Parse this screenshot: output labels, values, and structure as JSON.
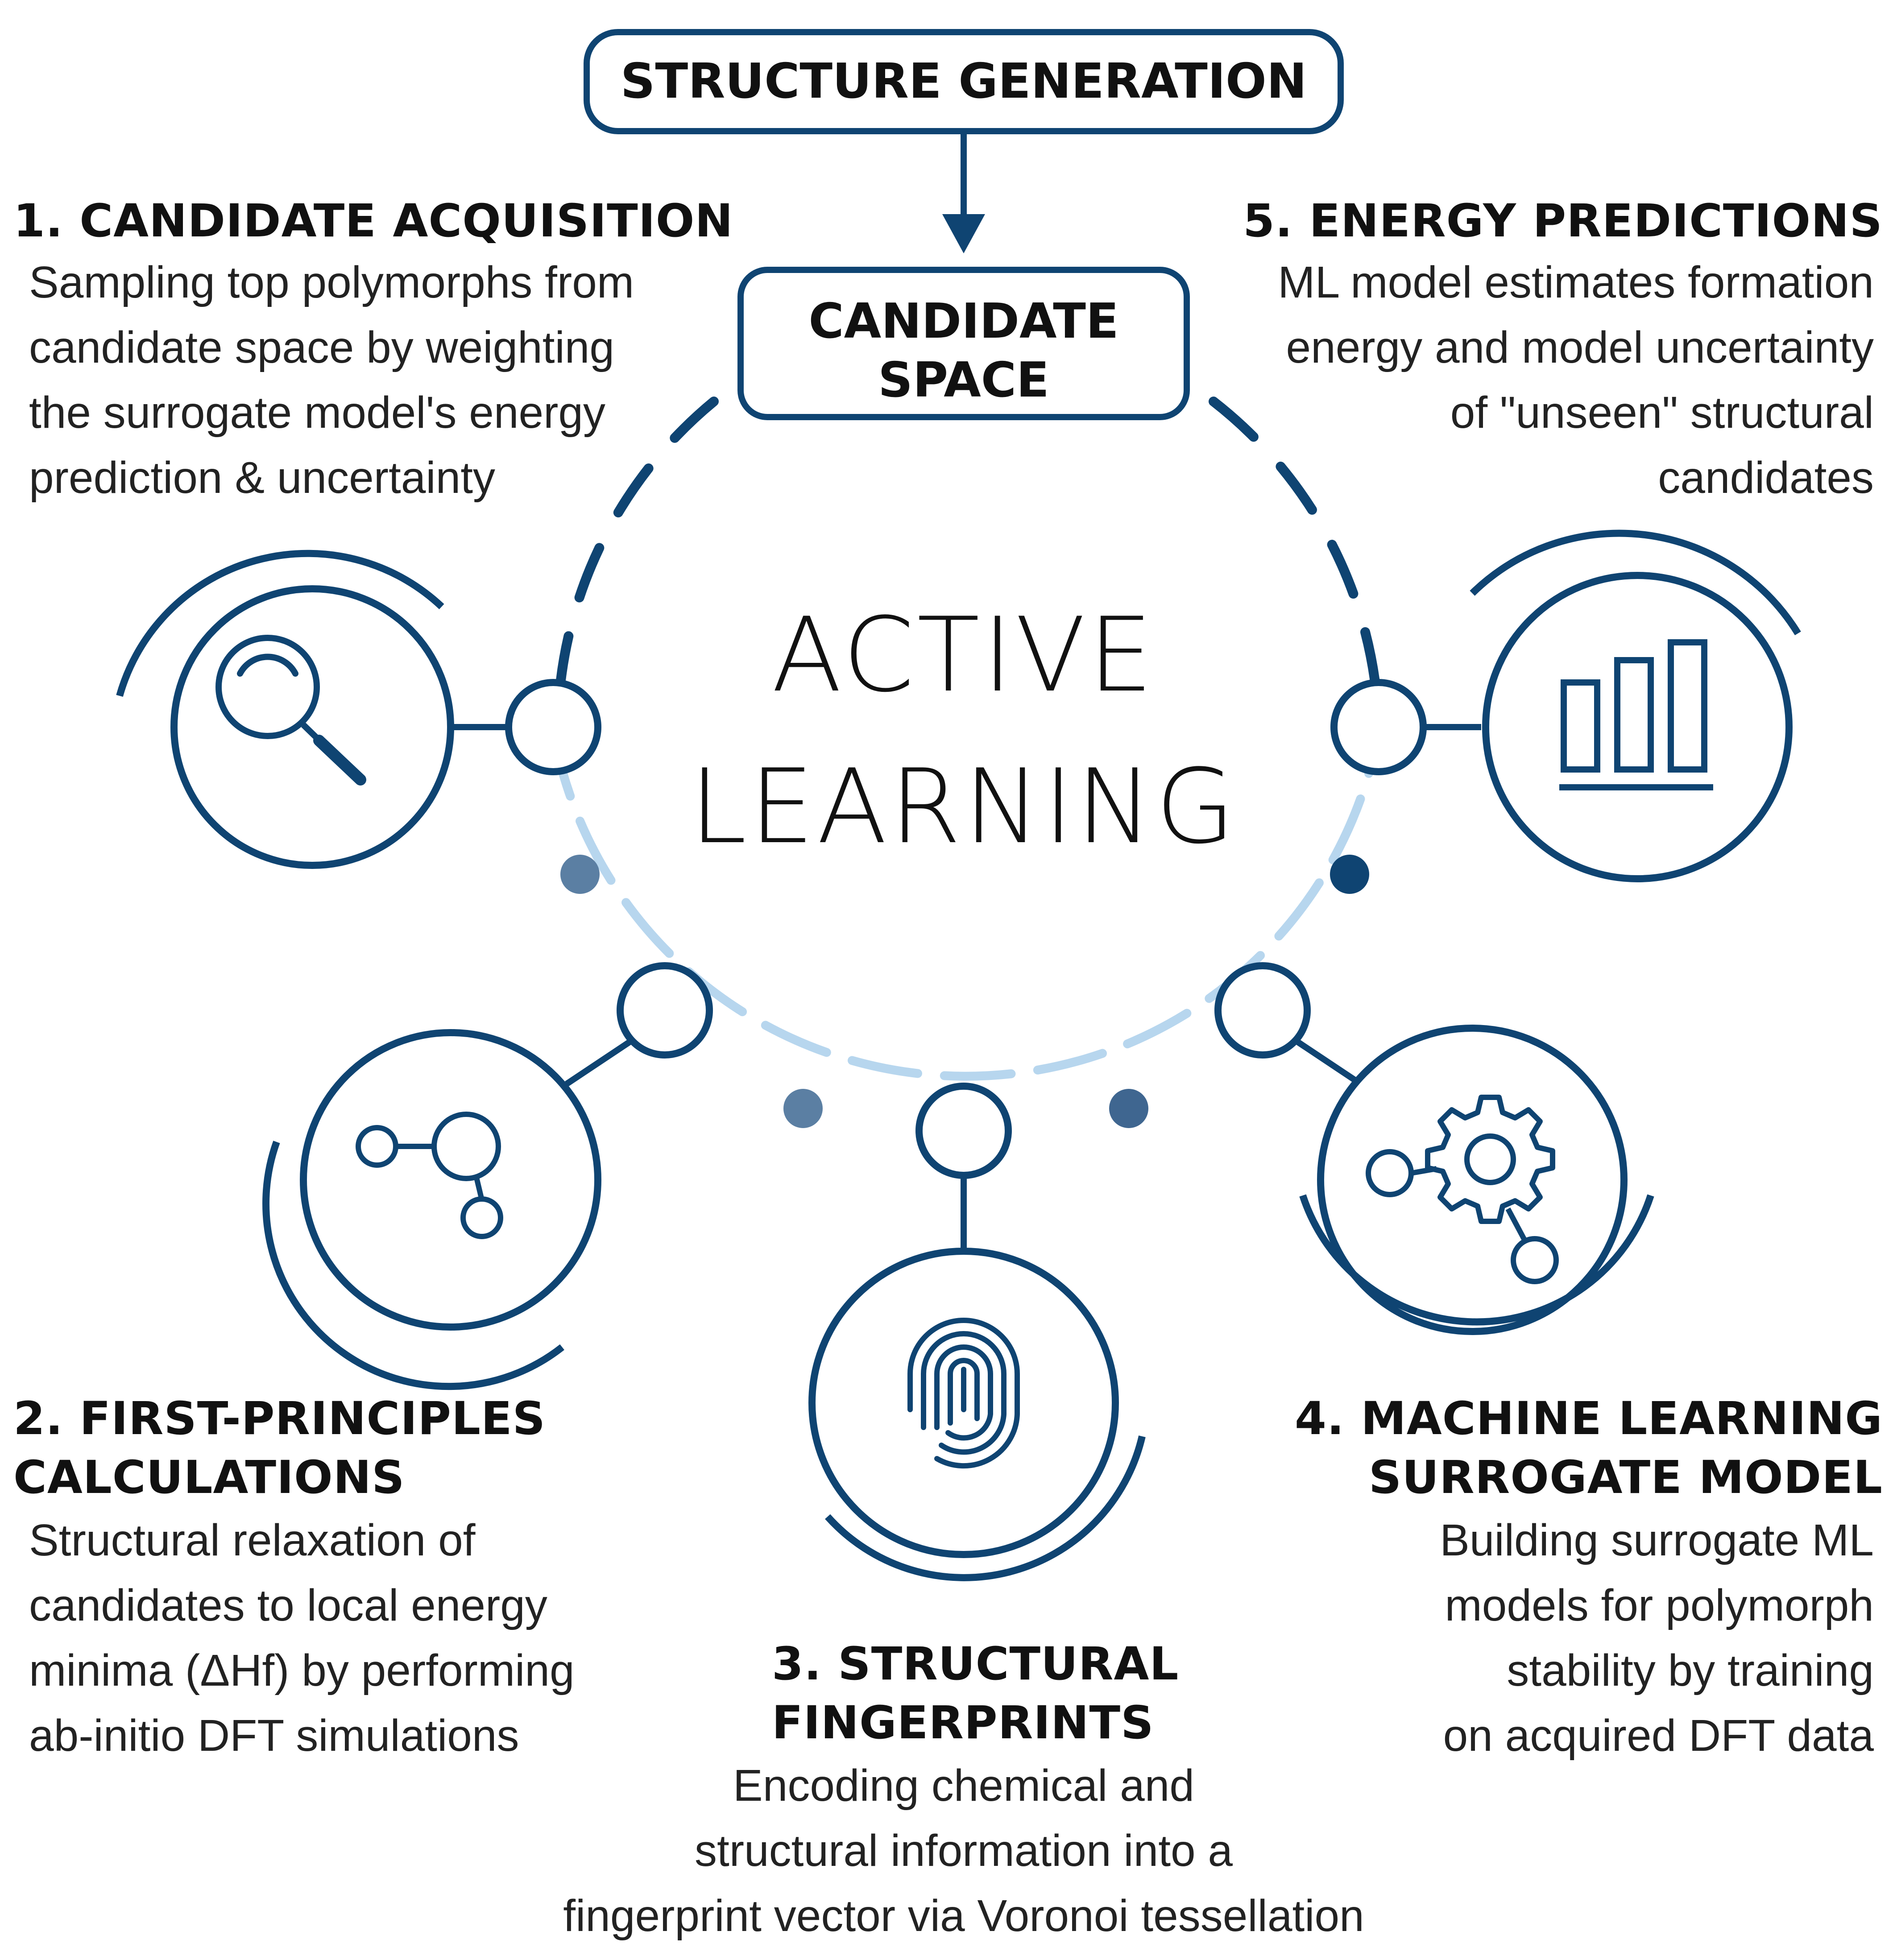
{
  "top_box": {
    "label": "STRUCTURE GENERATION"
  },
  "candidate_box": {
    "line1": "CANDIDATE",
    "line2": "SPACE"
  },
  "center_title": {
    "line1": "ACTIVE",
    "line2": "LEARNING"
  },
  "steps": [
    {
      "heading": [
        "1. CANDIDATE ACQUISITION"
      ],
      "description": [
        "Sampling top polymorphs from",
        "candidate space by weighting",
        "the surrogate model's energy",
        "prediction & uncertainty"
      ],
      "icon": "magnifier-icon"
    },
    {
      "heading": [
        "2. FIRST-PRINCIPLES",
        "CALCULATIONS"
      ],
      "description": [
        "Structural relaxation of",
        "candidates to local energy",
        "minima (ΔHf) by performing",
        "ab-initio DFT simulations"
      ],
      "icon": "molecule-icon"
    },
    {
      "heading": [
        "3. STRUCTURAL",
        "FINGERPRINTS"
      ],
      "description": [
        "Encoding chemical and",
        "structural information into a",
        "fingerprint vector via Voronoi tessellation"
      ],
      "icon": "fingerprint-icon"
    },
    {
      "heading": [
        "4. MACHINE LEARNING",
        "SURROGATE MODEL"
      ],
      "description": [
        "Building surrogate ML",
        "models for polymorph",
        "stability by training",
        "on acquired DFT data"
      ],
      "icon": "gear-network-icon"
    },
    {
      "heading": [
        "5. ENERGY PREDICTIONS"
      ],
      "description": [
        "ML model estimates formation",
        "energy and model uncertainty",
        "of \"unseen\" structural",
        "candidates"
      ],
      "icon": "bar-chart-icon"
    }
  ],
  "colors": {
    "dark_blue": "#0f4472",
    "light_blue": "#b7d6ee",
    "mid_blue": "#5b7fa3",
    "text": "#111111"
  }
}
